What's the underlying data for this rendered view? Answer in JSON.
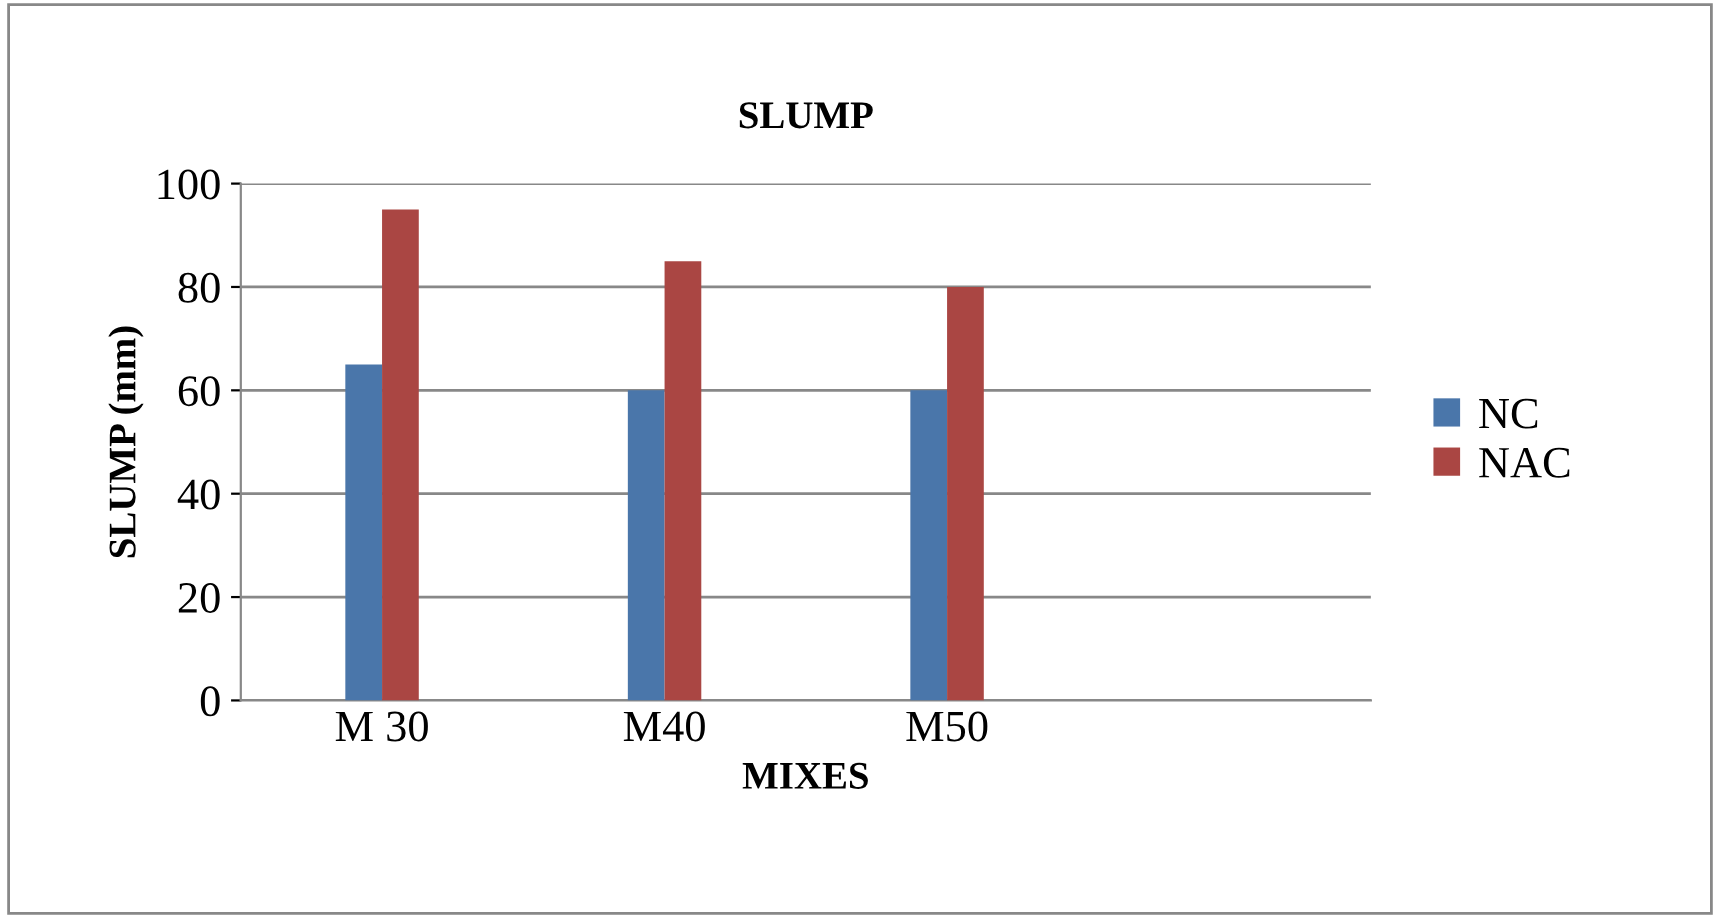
{
  "chart_data": {
    "type": "bar",
    "title": "SLUMP",
    "xlabel": "MIXES",
    "ylabel": "SLUMP (mm)",
    "categories": [
      "M 30",
      "M40",
      "M50",
      null
    ],
    "series": [
      {
        "name": "NC",
        "color": "#4a76aa",
        "values": [
          65,
          60,
          60,
          null
        ]
      },
      {
        "name": "NAC",
        "color": "#aa4643",
        "values": [
          95,
          85,
          80,
          null
        ]
      }
    ],
    "ylim": [
      0,
      100
    ],
    "yticks": [
      0,
      20,
      40,
      60,
      80,
      100
    ],
    "grid": "y",
    "legend": "right"
  }
}
